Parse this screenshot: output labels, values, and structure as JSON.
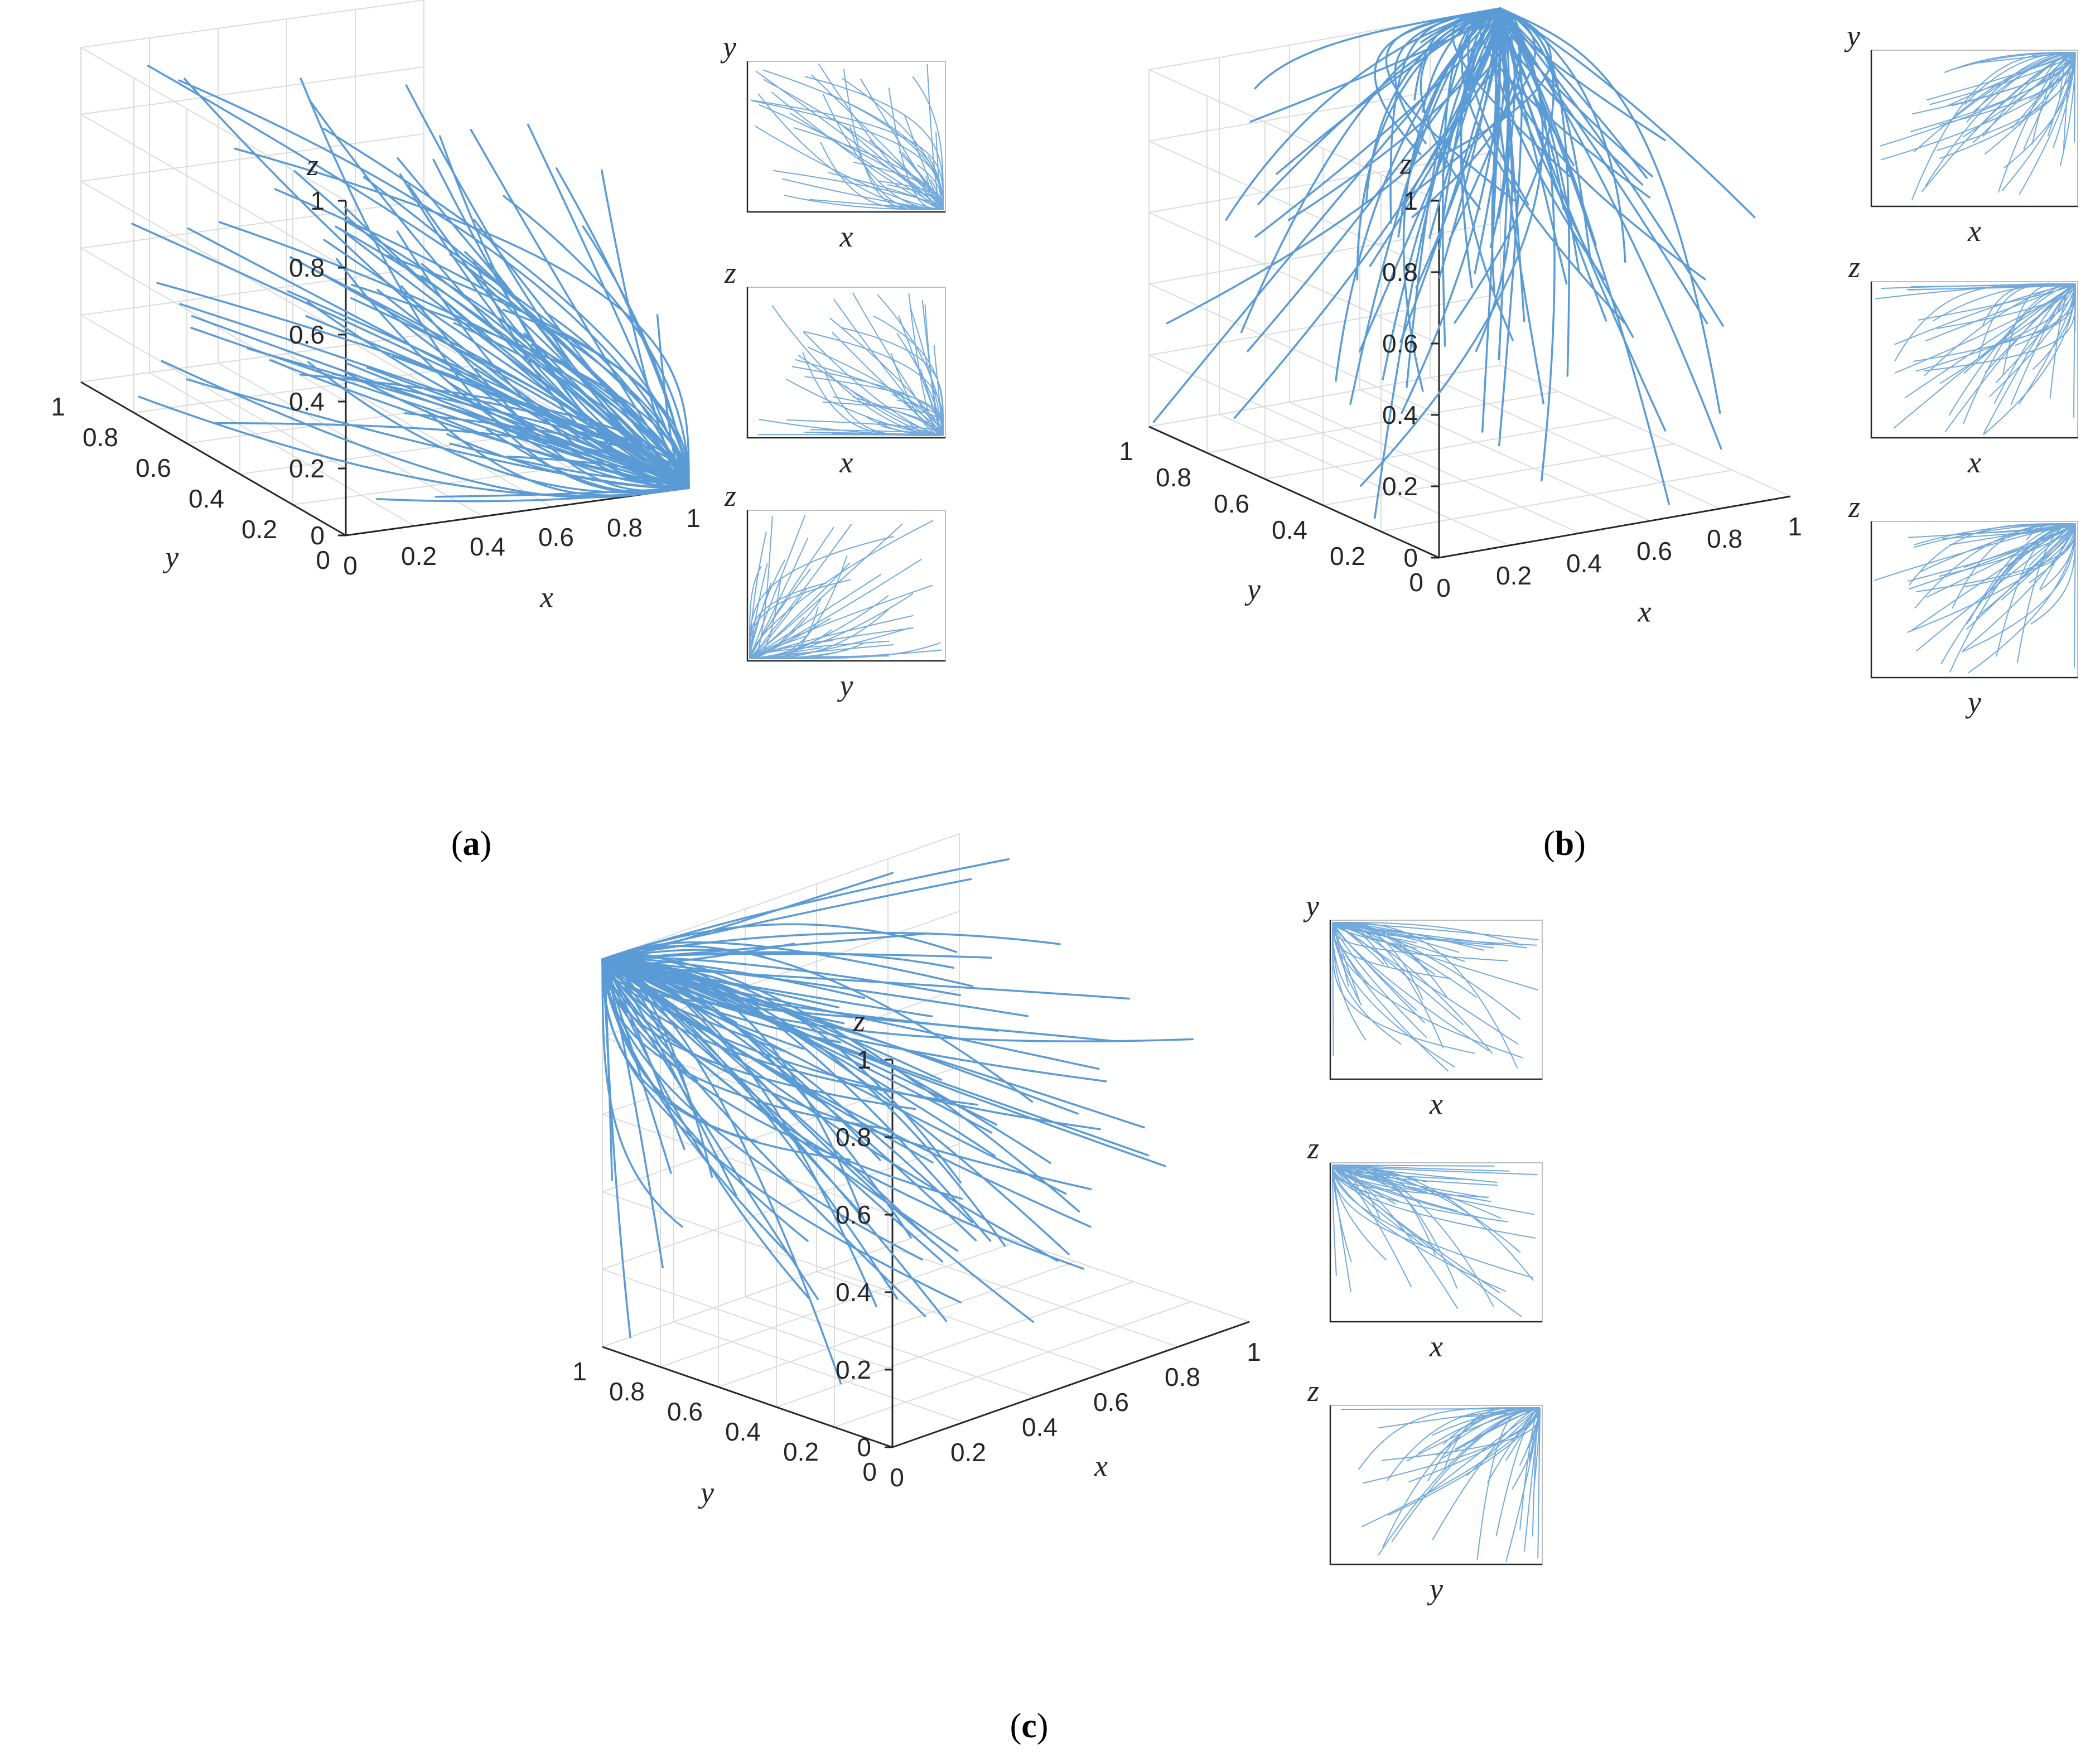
{
  "figure": {
    "line_color": "#5B9BD5",
    "axis_color": "#262626",
    "grid_color": "#dcdcdc",
    "panel_labels": [
      {
        "open": "(",
        "letter": "a",
        "close": ")"
      },
      {
        "open": "(",
        "letter": "b",
        "close": ")"
      },
      {
        "open": "(",
        "letter": "c",
        "close": ")"
      }
    ]
  },
  "chart_data": [
    {
      "type": "line",
      "panel": "a",
      "view": "3d",
      "xlabel": "x",
      "ylabel": "y",
      "zlabel": "z",
      "xlim": [
        0,
        1
      ],
      "ylim": [
        0,
        1
      ],
      "zlim": [
        0,
        1
      ],
      "xticks": [
        "0",
        "0.2",
        "0.4",
        "0.6",
        "0.8",
        "1"
      ],
      "yticks": [
        "0",
        "0.2",
        "0.4",
        "0.6",
        "0.8",
        "1"
      ],
      "zticks": [
        "0",
        "0.2",
        "0.4",
        "0.6",
        "0.8",
        "1"
      ],
      "grid": true,
      "trajectories_converge_to": [
        1,
        0,
        0
      ],
      "insets": [
        {
          "xlabel": "x",
          "ylabel": "y"
        },
        {
          "xlabel": "x",
          "ylabel": "z"
        },
        {
          "xlabel": "y",
          "ylabel": "z"
        }
      ]
    },
    {
      "type": "line",
      "panel": "b",
      "view": "3d",
      "xlabel": "x",
      "ylabel": "y",
      "zlabel": "z",
      "xlim": [
        0,
        1
      ],
      "ylim": [
        0,
        1
      ],
      "zlim": [
        0,
        1
      ],
      "xticks": [
        "0",
        "0.2",
        "0.4",
        "0.6",
        "0.8",
        "1"
      ],
      "yticks": [
        "0",
        "0.2",
        "0.4",
        "0.6",
        "0.8",
        "1"
      ],
      "zticks": [
        "0",
        "0.2",
        "0.4",
        "0.6",
        "0.8",
        "1"
      ],
      "grid": true,
      "trajectories_converge_to": [
        1,
        1,
        1
      ],
      "insets": [
        {
          "xlabel": "x",
          "ylabel": "y"
        },
        {
          "xlabel": "x",
          "ylabel": "z"
        },
        {
          "xlabel": "y",
          "ylabel": "z"
        }
      ]
    },
    {
      "type": "line",
      "panel": "c",
      "view": "3d",
      "xlabel": "x",
      "ylabel": "y",
      "zlabel": "z",
      "xlim": [
        0,
        1
      ],
      "ylim": [
        0,
        1
      ],
      "zlim": [
        0,
        1
      ],
      "xticks": [
        "0",
        "0.2",
        "0.4",
        "0.6",
        "0.8",
        "1"
      ],
      "yticks": [
        "0",
        "0.2",
        "0.4",
        "0.6",
        "0.8",
        "1"
      ],
      "zticks": [
        "0",
        "0.2",
        "0.4",
        "0.6",
        "0.8",
        "1"
      ],
      "grid": true,
      "trajectories_converge_to": [
        0,
        1,
        1
      ],
      "insets": [
        {
          "xlabel": "x",
          "ylabel": "y"
        },
        {
          "xlabel": "x",
          "ylabel": "z"
        },
        {
          "xlabel": "y",
          "ylabel": "z"
        }
      ]
    }
  ]
}
